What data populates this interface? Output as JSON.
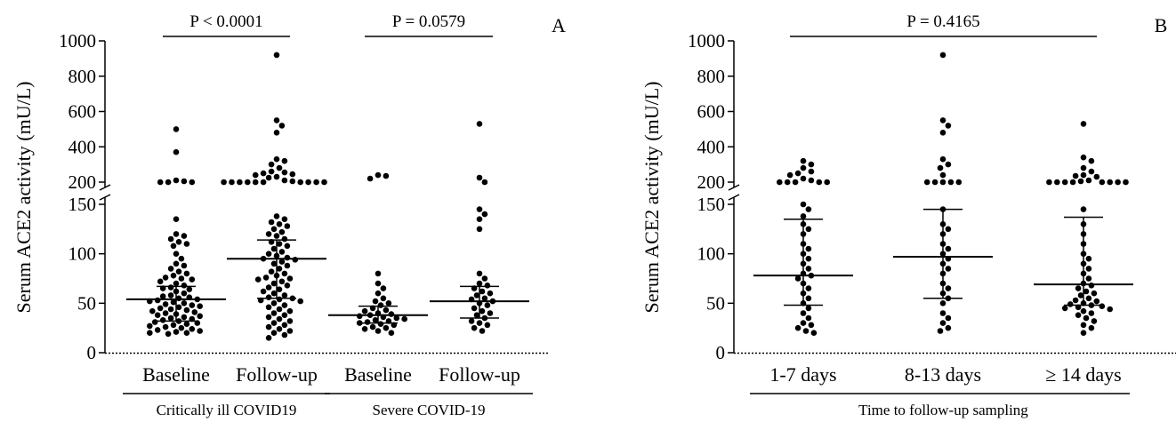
{
  "chart_data": [
    {
      "panel_label": "A",
      "type": "scatter",
      "ylabel": "Serum ACE2 activity (mU/L)",
      "y_axis": {
        "broken": true,
        "lower_range": [
          0,
          150
        ],
        "lower_ticks": [
          "0",
          "50",
          "100",
          "150"
        ],
        "upper_range": [
          200,
          1000
        ],
        "upper_ticks": [
          "200",
          "400",
          "600",
          "800",
          "1000"
        ]
      },
      "categories": [
        "Baseline",
        "Follow-up",
        "Baseline",
        "Follow-up"
      ],
      "groups": [
        {
          "label": "Critically ill COVID19",
          "categories": [
            0,
            1
          ]
        },
        {
          "label": "Severe COVID-19",
          "categories": [
            2,
            3
          ]
        }
      ],
      "comparisons": [
        {
          "label": "P < 0.0001",
          "from": 0,
          "to": 1
        },
        {
          "label": "P = 0.0579",
          "from": 2,
          "to": 3
        }
      ],
      "series": [
        {
          "category": 0,
          "median": 54,
          "q1": 32,
          "q3": 67,
          "values": [
            500,
            370,
            210,
            205,
            200,
            195,
            190,
            135,
            120,
            118,
            115,
            112,
            110,
            108,
            100,
            95,
            90,
            88,
            85,
            82,
            80,
            78,
            76,
            75,
            74,
            72,
            70,
            68,
            66,
            65,
            64,
            62,
            60,
            58,
            57,
            56,
            55,
            54,
            53,
            52,
            51,
            50,
            49,
            48,
            47,
            46,
            45,
            44,
            43,
            42,
            41,
            40,
            39,
            38,
            37,
            36,
            35,
            34,
            33,
            32,
            31,
            30,
            29,
            28,
            27,
            26,
            25,
            24,
            23,
            22,
            21,
            20,
            20,
            19
          ]
        },
        {
          "category": 1,
          "median": 95,
          "q1": 55,
          "q3": 114,
          "values": [
            920,
            550,
            520,
            480,
            330,
            320,
            300,
            280,
            260,
            255,
            250,
            245,
            240,
            230,
            225,
            210,
            205,
            200,
            195,
            190,
            185,
            180,
            175,
            170,
            165,
            160,
            155,
            138,
            135,
            132,
            130,
            128,
            125,
            122,
            120,
            118,
            115,
            112,
            110,
            108,
            105,
            102,
            100,
            98,
            96,
            95,
            94,
            92,
            90,
            88,
            85,
            82,
            80,
            78,
            76,
            75,
            74,
            72,
            70,
            68,
            66,
            64,
            62,
            60,
            58,
            56,
            55,
            54,
            53,
            52,
            50,
            48,
            46,
            44,
            42,
            40,
            38,
            36,
            34,
            32,
            30,
            28,
            26,
            24,
            22,
            20,
            18,
            15
          ]
        },
        {
          "category": 2,
          "median": 38,
          "q1": 30,
          "q3": 47,
          "values": [
            240,
            235,
            220,
            80,
            70,
            65,
            60,
            55,
            52,
            50,
            48,
            45,
            43,
            42,
            40,
            39,
            38,
            37,
            36,
            35,
            34,
            33,
            32,
            31,
            30,
            29,
            28,
            26,
            25,
            24,
            22,
            20
          ]
        },
        {
          "category": 3,
          "median": 52,
          "q1": 35,
          "q3": 67,
          "values": [
            530,
            225,
            190,
            145,
            140,
            135,
            125,
            80,
            75,
            70,
            68,
            65,
            62,
            60,
            58,
            55,
            54,
            52,
            50,
            48,
            45,
            42,
            40,
            38,
            35,
            32,
            30,
            28,
            25,
            22
          ]
        }
      ]
    },
    {
      "panel_label": "B",
      "type": "scatter",
      "ylabel": "Serum ACE2 activity (mU/L)",
      "xlabel": "Time to follow-up sampling",
      "y_axis": {
        "broken": true,
        "lower_range": [
          0,
          150
        ],
        "lower_ticks": [
          "0",
          "50",
          "100",
          "150"
        ],
        "upper_range": [
          200,
          1000
        ],
        "upper_ticks": [
          "200",
          "400",
          "600",
          "800",
          "1000"
        ]
      },
      "categories": [
        "1-7 days",
        "8-13 days",
        "≥ 14 days"
      ],
      "comparisons": [
        {
          "label": "P = 0.4165",
          "from": 0,
          "to": 2
        }
      ],
      "series": [
        {
          "category": 0,
          "median": 78,
          "q1": 48,
          "q3": 135,
          "values": [
            320,
            300,
            280,
            260,
            250,
            240,
            220,
            210,
            200,
            190,
            185,
            175,
            165,
            150,
            145,
            138,
            130,
            125,
            120,
            110,
            105,
            100,
            95,
            90,
            85,
            80,
            78,
            75,
            70,
            65,
            60,
            55,
            50,
            45,
            40,
            35,
            30,
            28,
            25,
            22,
            20
          ]
        },
        {
          "category": 1,
          "median": 97,
          "q1": 55,
          "q3": 145,
          "values": [
            920,
            550,
            520,
            480,
            330,
            300,
            280,
            240,
            200,
            190,
            180,
            175,
            160,
            145,
            130,
            125,
            120,
            110,
            105,
            100,
            95,
            90,
            85,
            80,
            70,
            65,
            60,
            55,
            50,
            40,
            35,
            30,
            25,
            22
          ]
        },
        {
          "category": 2,
          "median": 69,
          "q1": 48,
          "q3": 137,
          "values": [
            530,
            340,
            320,
            280,
            260,
            240,
            235,
            230,
            210,
            205,
            200,
            195,
            190,
            185,
            180,
            175,
            165,
            155,
            145,
            130,
            120,
            110,
            100,
            95,
            90,
            85,
            80,
            75,
            70,
            68,
            65,
            62,
            60,
            58,
            55,
            53,
            52,
            50,
            49,
            48,
            47,
            46,
            45,
            44,
            42,
            40,
            38,
            35,
            32,
            28,
            25,
            20
          ]
        }
      ]
    }
  ]
}
